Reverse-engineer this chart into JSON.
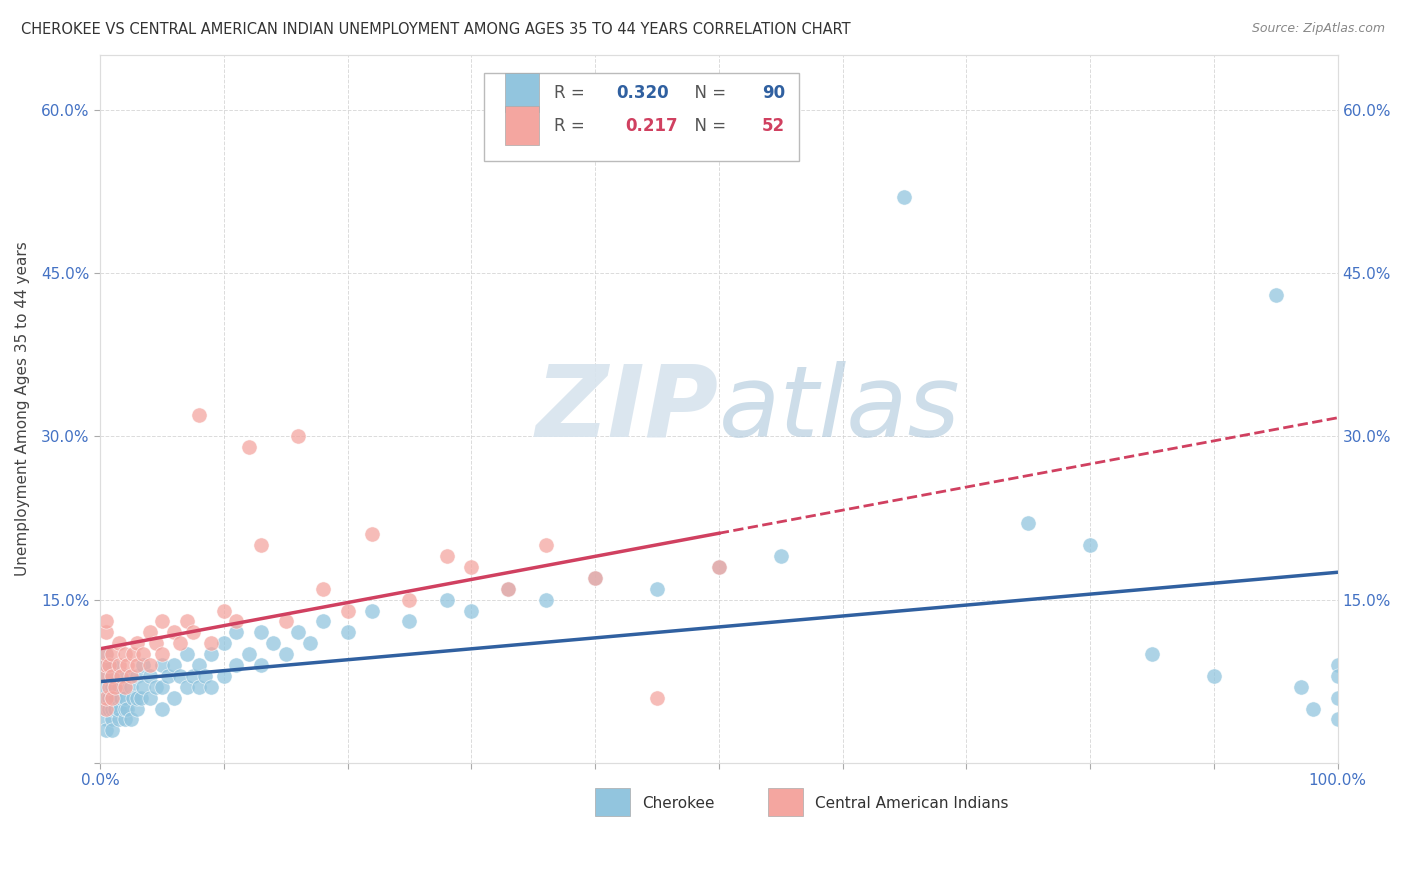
{
  "title": "CHEROKEE VS CENTRAL AMERICAN INDIAN UNEMPLOYMENT AMONG AGES 35 TO 44 YEARS CORRELATION CHART",
  "source": "Source: ZipAtlas.com",
  "ylabel": "Unemployment Among Ages 35 to 44 years",
  "cherokee_R": "0.320",
  "cherokee_N": "90",
  "central_R": "0.217",
  "central_N": "52",
  "cherokee_color": "#92c5de",
  "central_color": "#f4a6a0",
  "cherokee_line_color": "#3060a0",
  "central_line_color": "#d04060",
  "watermark_zip": "#c8d8e8",
  "watermark_atlas": "#a8c0d8",
  "background_color": "#ffffff",
  "grid_color": "#cccccc",
  "xlim": [
    0,
    1.0
  ],
  "ylim": [
    0,
    0.65
  ],
  "cherokee_x": [
    0.005,
    0.005,
    0.005,
    0.005,
    0.005,
    0.005,
    0.005,
    0.005,
    0.007,
    0.007,
    0.01,
    0.01,
    0.01,
    0.01,
    0.01,
    0.01,
    0.01,
    0.012,
    0.012,
    0.015,
    0.015,
    0.015,
    0.017,
    0.02,
    0.02,
    0.02,
    0.02,
    0.022,
    0.025,
    0.025,
    0.027,
    0.03,
    0.03,
    0.03,
    0.033,
    0.035,
    0.035,
    0.04,
    0.04,
    0.045,
    0.05,
    0.05,
    0.05,
    0.055,
    0.06,
    0.06,
    0.065,
    0.07,
    0.07,
    0.075,
    0.08,
    0.08,
    0.085,
    0.09,
    0.09,
    0.1,
    0.1,
    0.11,
    0.11,
    0.12,
    0.13,
    0.13,
    0.14,
    0.15,
    0.16,
    0.17,
    0.18,
    0.2,
    0.22,
    0.25,
    0.28,
    0.3,
    0.33,
    0.36,
    0.4,
    0.45,
    0.5,
    0.55,
    0.65,
    0.75,
    0.8,
    0.85,
    0.9,
    0.95,
    0.97,
    0.98,
    1.0,
    1.0,
    1.0,
    1.0
  ],
  "cherokee_y": [
    0.04,
    0.05,
    0.06,
    0.07,
    0.08,
    0.09,
    0.03,
    0.1,
    0.05,
    0.06,
    0.04,
    0.05,
    0.06,
    0.07,
    0.08,
    0.03,
    0.09,
    0.05,
    0.06,
    0.04,
    0.05,
    0.07,
    0.06,
    0.04,
    0.05,
    0.06,
    0.08,
    0.05,
    0.04,
    0.07,
    0.06,
    0.05,
    0.06,
    0.08,
    0.06,
    0.07,
    0.09,
    0.06,
    0.08,
    0.07,
    0.05,
    0.07,
    0.09,
    0.08,
    0.06,
    0.09,
    0.08,
    0.07,
    0.1,
    0.08,
    0.07,
    0.09,
    0.08,
    0.1,
    0.07,
    0.08,
    0.11,
    0.09,
    0.12,
    0.1,
    0.09,
    0.12,
    0.11,
    0.1,
    0.12,
    0.11,
    0.13,
    0.12,
    0.14,
    0.13,
    0.15,
    0.14,
    0.16,
    0.15,
    0.17,
    0.16,
    0.18,
    0.19,
    0.52,
    0.22,
    0.2,
    0.1,
    0.08,
    0.43,
    0.07,
    0.05,
    0.04,
    0.09,
    0.06,
    0.08
  ],
  "central_x": [
    0.005,
    0.005,
    0.005,
    0.005,
    0.005,
    0.005,
    0.005,
    0.007,
    0.007,
    0.01,
    0.01,
    0.01,
    0.012,
    0.015,
    0.015,
    0.017,
    0.02,
    0.02,
    0.022,
    0.025,
    0.027,
    0.03,
    0.03,
    0.035,
    0.04,
    0.04,
    0.045,
    0.05,
    0.05,
    0.06,
    0.065,
    0.07,
    0.075,
    0.08,
    0.09,
    0.1,
    0.11,
    0.12,
    0.13,
    0.15,
    0.16,
    0.18,
    0.2,
    0.22,
    0.25,
    0.28,
    0.3,
    0.33,
    0.36,
    0.4,
    0.45,
    0.5
  ],
  "central_y": [
    0.05,
    0.06,
    0.08,
    0.09,
    0.1,
    0.12,
    0.13,
    0.07,
    0.09,
    0.06,
    0.08,
    0.1,
    0.07,
    0.09,
    0.11,
    0.08,
    0.07,
    0.1,
    0.09,
    0.08,
    0.1,
    0.09,
    0.11,
    0.1,
    0.09,
    0.12,
    0.11,
    0.1,
    0.13,
    0.12,
    0.11,
    0.13,
    0.12,
    0.32,
    0.11,
    0.14,
    0.13,
    0.29,
    0.2,
    0.13,
    0.3,
    0.16,
    0.14,
    0.21,
    0.15,
    0.19,
    0.18,
    0.16,
    0.2,
    0.17,
    0.06,
    0.18
  ]
}
